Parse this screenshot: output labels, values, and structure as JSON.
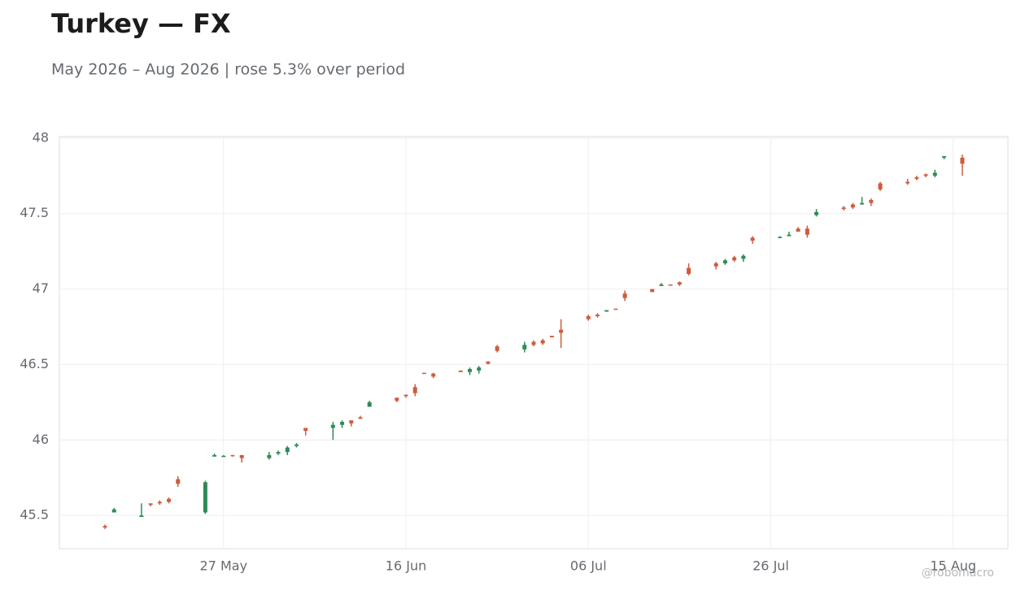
{
  "chart_data": {
    "type": "candlestick",
    "title": "Turkey — FX",
    "subtitle": "May 2026 – Aug 2026 | rose 5.3% over period",
    "watermark": "@robomacro",
    "x": [
      "14 May",
      "15 May",
      "18 May",
      "19 May",
      "20 May",
      "21 May",
      "22 May",
      "25 May",
      "26 May",
      "27 May",
      "28 May",
      "29 May",
      "01 Jun",
      "02 Jun",
      "03 Jun",
      "04 Jun",
      "05 Jun",
      "08 Jun",
      "09 Jun",
      "10 Jun",
      "11 Jun",
      "12 Jun",
      "15 Jun",
      "16 Jun",
      "17 Jun",
      "18 Jun",
      "19 Jun",
      "22 Jun",
      "23 Jun",
      "24 Jun",
      "25 Jun",
      "26 Jun",
      "29 Jun",
      "30 Jun",
      "01 Jul",
      "02 Jul",
      "03 Jul",
      "06 Jul",
      "07 Jul",
      "08 Jul",
      "09 Jul",
      "10 Jul",
      "13 Jul",
      "14 Jul",
      "15 Jul",
      "16 Jul",
      "17 Jul",
      "20 Jul",
      "21 Jul",
      "22 Jul",
      "23 Jul",
      "24 Jul",
      "27 Jul",
      "28 Jul",
      "29 Jul",
      "30 Jul",
      "31 Jul",
      "03 Aug",
      "04 Aug",
      "05 Aug",
      "06 Aug",
      "07 Aug",
      "10 Aug",
      "11 Aug",
      "12 Aug",
      "13 Aug",
      "14 Aug",
      "16 Aug"
    ],
    "open": [
      45.43,
      45.52,
      45.49,
      45.58,
      45.59,
      45.61,
      45.74,
      45.52,
      45.89,
      45.89,
      45.9,
      45.9,
      45.88,
      45.91,
      45.92,
      45.96,
      46.08,
      46.08,
      46.1,
      46.13,
      46.15,
      46.22,
      46.28,
      46.3,
      46.35,
      46.445,
      46.44,
      46.46,
      46.45,
      46.46,
      46.52,
      46.62,
      46.6,
      46.65,
      46.66,
      46.69,
      46.73,
      46.82,
      46.83,
      46.85,
      46.87,
      46.97,
      47.0,
      47.02,
      47.03,
      47.045,
      47.14,
      47.17,
      47.17,
      47.21,
      47.2,
      47.34,
      47.34,
      47.35,
      47.4,
      47.4,
      47.49,
      47.54,
      47.56,
      47.56,
      47.59,
      47.7,
      47.71,
      47.74,
      47.76,
      47.75,
      47.87,
      47.87
    ],
    "high": [
      45.44,
      45.55,
      45.58,
      45.58,
      45.6,
      45.62,
      45.76,
      45.73,
      45.91,
      45.9,
      45.9,
      45.9,
      45.92,
      45.93,
      45.96,
      45.98,
      46.08,
      46.12,
      46.13,
      46.13,
      46.16,
      46.26,
      46.28,
      46.3,
      46.37,
      46.445,
      46.445,
      46.46,
      46.48,
      46.49,
      46.52,
      46.63,
      46.65,
      46.66,
      46.67,
      46.69,
      46.8,
      46.83,
      46.84,
      46.86,
      46.87,
      46.99,
      47.0,
      47.04,
      47.03,
      47.05,
      47.17,
      47.18,
      47.2,
      47.22,
      47.23,
      47.35,
      47.35,
      47.38,
      47.41,
      47.42,
      47.53,
      47.55,
      47.57,
      47.61,
      47.6,
      47.71,
      47.73,
      47.75,
      47.765,
      47.79,
      47.88,
      47.89
    ],
    "low": [
      45.41,
      45.52,
      45.49,
      45.56,
      45.57,
      45.58,
      45.69,
      45.51,
      45.89,
      45.89,
      45.89,
      45.85,
      45.87,
      45.9,
      45.9,
      45.95,
      46.03,
      46.0,
      46.08,
      46.09,
      46.14,
      46.22,
      46.25,
      46.28,
      46.29,
      46.44,
      46.41,
      46.45,
      46.43,
      46.44,
      46.5,
      46.58,
      46.58,
      46.62,
      46.63,
      46.68,
      46.61,
      46.79,
      46.81,
      46.85,
      46.865,
      46.92,
      46.98,
      47.02,
      47.025,
      47.02,
      47.09,
      47.13,
      47.16,
      47.18,
      47.18,
      47.3,
      47.34,
      47.35,
      47.38,
      47.34,
      47.48,
      47.52,
      47.53,
      47.56,
      47.55,
      47.65,
      47.69,
      47.72,
      47.74,
      47.74,
      47.86,
      47.75
    ],
    "close": [
      45.42,
      45.54,
      45.5,
      45.57,
      45.58,
      45.59,
      45.71,
      45.72,
      45.9,
      45.895,
      45.895,
      45.88,
      45.9,
      45.92,
      45.95,
      45.97,
      46.06,
      46.1,
      46.12,
      46.11,
      46.14,
      46.25,
      46.26,
      46.29,
      46.31,
      46.44,
      46.42,
      46.45,
      46.47,
      46.48,
      46.505,
      46.59,
      46.63,
      46.63,
      46.64,
      46.68,
      46.71,
      46.8,
      46.82,
      46.86,
      46.865,
      46.94,
      46.98,
      47.03,
      47.025,
      47.03,
      47.1,
      47.15,
      47.19,
      47.19,
      47.22,
      47.32,
      47.345,
      47.36,
      47.38,
      47.36,
      47.51,
      47.53,
      47.54,
      47.57,
      47.57,
      47.66,
      47.7,
      47.73,
      47.75,
      47.77,
      47.88,
      47.83
    ],
    "up_color": "#2e8b57",
    "down_color": "#cd5c3c",
    "xlim": [
      "09 May",
      "21 Aug"
    ],
    "xticks": [
      "27 May",
      "16 Jun",
      "06 Jul",
      "26 Jul",
      "15 Aug"
    ],
    "ylim": [
      45.28,
      48.01
    ],
    "yticks": [
      45.5,
      46,
      46.5,
      47,
      47.5,
      48
    ],
    "grid": true
  }
}
